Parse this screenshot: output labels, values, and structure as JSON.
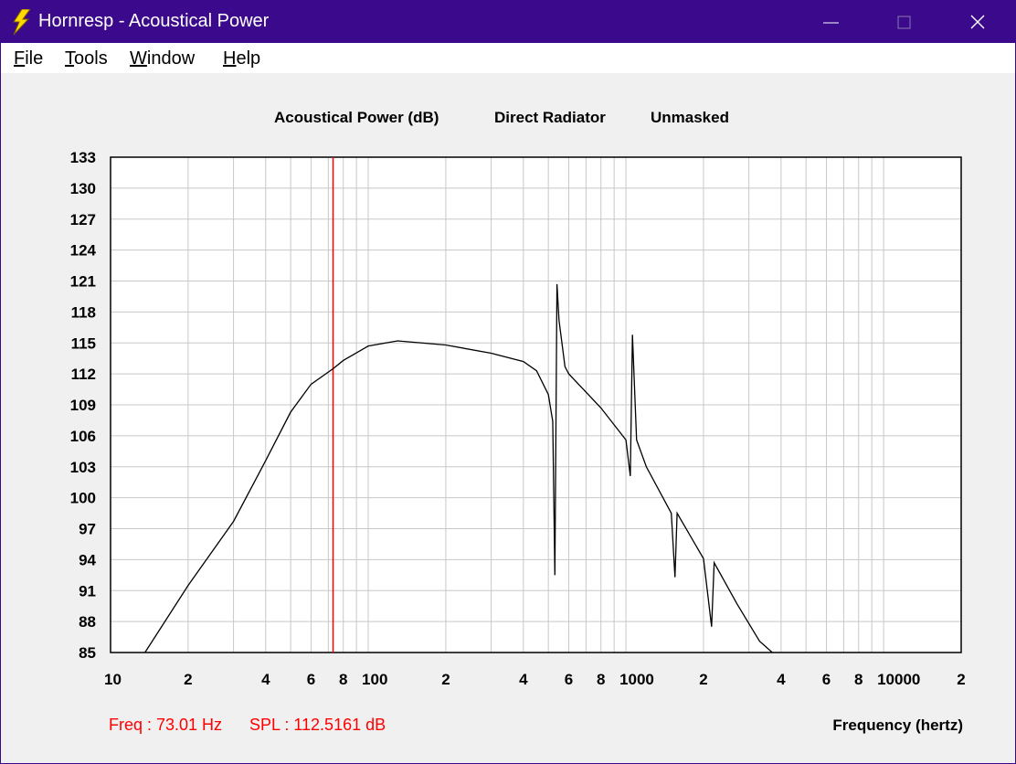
{
  "window": {
    "title": "Hornresp - Acoustical Power",
    "menu": [
      "File",
      "Tools",
      "Window",
      "Help"
    ]
  },
  "chart_data": {
    "type": "line",
    "title": "Acoustical Power (dB)",
    "mode": "Direct Radiator",
    "mask": "Unmasked",
    "xlabel": "Frequency (hertz)",
    "xscale": "log",
    "grid": true,
    "color": "#000000",
    "xlim": [
      10,
      20000
    ],
    "ylim": [
      85,
      133
    ],
    "xticks": [
      10,
      {
        "value": 20,
        "label": "2"
      },
      {
        "value": 40,
        "label": "4"
      },
      {
        "value": 60,
        "label": "6"
      },
      {
        "value": 80,
        "label": "8"
      },
      100,
      {
        "value": 200,
        "label": "2"
      },
      {
        "value": 400,
        "label": "4"
      },
      {
        "value": 600,
        "label": "6"
      },
      {
        "value": 800,
        "label": "8"
      },
      1000,
      {
        "value": 2000,
        "label": "2"
      },
      {
        "value": 4000,
        "label": "4"
      },
      {
        "value": 6000,
        "label": "6"
      },
      {
        "value": 8000,
        "label": "8"
      },
      10000,
      {
        "value": 20000,
        "label": "2"
      }
    ],
    "xminor": [
      30,
      50,
      70,
      90,
      300,
      500,
      700,
      900,
      3000,
      5000,
      7000,
      9000
    ],
    "yticks": [
      85,
      88,
      91,
      94,
      97,
      100,
      103,
      106,
      109,
      112,
      115,
      118,
      121,
      124,
      127,
      130,
      133
    ],
    "x": [
      13.6,
      20,
      30,
      40,
      50,
      60,
      73,
      80,
      100,
      130,
      200,
      300,
      400,
      450,
      500,
      520,
      530,
      540,
      550,
      580,
      600,
      800,
      1000,
      1040,
      1060,
      1100,
      1200,
      1500,
      1550,
      1580,
      2000,
      2150,
      2200,
      2700,
      3300,
      3700
    ],
    "values": [
      85,
      91.5,
      97.7,
      103.6,
      108.3,
      111,
      112.5,
      113.3,
      114.7,
      115.2,
      114.8,
      114,
      113.2,
      112.3,
      110,
      107.4,
      92.5,
      120.7,
      117.2,
      112.7,
      112,
      108.7,
      105.6,
      102.1,
      115.8,
      105.6,
      103,
      98.5,
      92.3,
      98.5,
      94.1,
      87.5,
      93.7,
      89.7,
      86.1,
      85
    ],
    "cursor": {
      "x": 73.01,
      "color": "#ff0000"
    },
    "readout_freq": "Freq : 73.01 Hz",
    "readout_spl": "SPL : 112.5161 dB",
    "readout_color": "#ff0000"
  }
}
